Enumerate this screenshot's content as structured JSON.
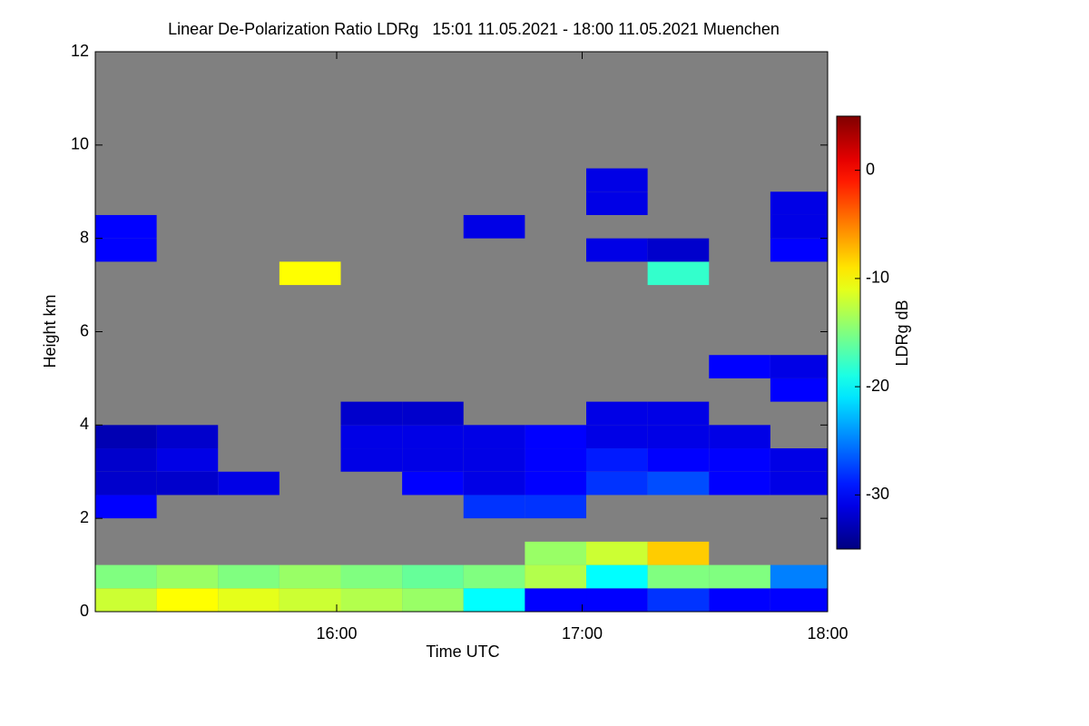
{
  "chart_data": {
    "type": "heatmap",
    "title": "Linear De-Polarization Ratio LDRg   15:01 11.05.2021 - 18:00 11.05.2021 Muenchen",
    "x_label": "Time UTC",
    "y_label": "Height km",
    "colorbar_label": "LDRg dB",
    "xlim": [
      901,
      1080
    ],
    "xticks": [
      {
        "value": 960,
        "label": "16:00"
      },
      {
        "value": 1020,
        "label": "17:00"
      },
      {
        "value": 1080,
        "label": "18:00"
      }
    ],
    "ylim": [
      0,
      12
    ],
    "yticks": [
      0,
      2,
      4,
      6,
      8,
      10,
      12
    ],
    "xbins": [
      901,
      916,
      931,
      946,
      961,
      976,
      991,
      1006,
      1021,
      1036,
      1051,
      1066,
      1080
    ],
    "ybins": [
      0,
      0.5,
      1,
      1.5,
      2,
      2.5,
      3,
      3.5,
      4,
      4.5,
      5,
      5.5,
      6,
      6.5,
      7,
      7.5,
      8,
      8.5,
      9,
      9.5,
      10,
      10.5,
      11,
      11.5,
      12
    ],
    "missing_color": "#808080",
    "colormap": "jet",
    "zlim": [
      -35,
      5
    ],
    "zticks": [
      -30,
      -20,
      -10,
      0
    ],
    "z": [
      [
        -12,
        -10,
        -11,
        -12,
        -13,
        -14,
        -20,
        -30,
        -30,
        -28,
        -30,
        -30
      ],
      [
        -15,
        -14,
        -15,
        -14,
        -15,
        -16,
        -15,
        -13,
        -20,
        -15,
        -15,
        -25
      ],
      [
        null,
        null,
        null,
        null,
        null,
        null,
        null,
        -14,
        -12,
        -8,
        null,
        null
      ],
      [
        null,
        null,
        null,
        null,
        null,
        null,
        null,
        null,
        null,
        null,
        null,
        null
      ],
      [
        -30,
        null,
        null,
        null,
        null,
        null,
        -28,
        -28,
        null,
        null,
        null,
        null
      ],
      [
        -32,
        -32,
        -31,
        null,
        null,
        -30,
        -31,
        -30,
        -28,
        -27,
        -30,
        -31
      ],
      [
        -32,
        -31,
        null,
        null,
        -31,
        -31,
        -31,
        -30,
        -29,
        -30,
        -30,
        -31
      ],
      [
        -33,
        -32,
        null,
        null,
        -31,
        -31,
        -31,
        -30,
        -31,
        -31,
        -31,
        null
      ],
      [
        null,
        null,
        null,
        null,
        -32,
        -32,
        null,
        null,
        -31,
        -31,
        null,
        null
      ],
      [
        null,
        null,
        null,
        null,
        null,
        null,
        null,
        null,
        null,
        null,
        null,
        -30
      ],
      [
        null,
        null,
        null,
        null,
        null,
        null,
        null,
        null,
        null,
        null,
        -30,
        -31
      ],
      [
        null,
        null,
        null,
        null,
        null,
        null,
        null,
        null,
        null,
        null,
        null,
        null
      ],
      [
        null,
        null,
        null,
        null,
        null,
        null,
        null,
        null,
        null,
        null,
        null,
        null
      ],
      [
        null,
        null,
        null,
        null,
        null,
        null,
        null,
        null,
        null,
        null,
        null,
        null
      ],
      [
        null,
        null,
        null,
        -10,
        null,
        null,
        null,
        null,
        null,
        -18,
        null,
        null
      ],
      [
        -30,
        null,
        null,
        null,
        null,
        null,
        null,
        null,
        -31,
        -32,
        null,
        -30
      ],
      [
        -30,
        null,
        null,
        null,
        null,
        null,
        -31,
        null,
        null,
        null,
        null,
        -31
      ],
      [
        null,
        null,
        null,
        null,
        null,
        null,
        null,
        null,
        -31,
        null,
        null,
        -31
      ],
      [
        null,
        null,
        null,
        null,
        null,
        null,
        null,
        null,
        -31,
        null,
        null,
        null
      ],
      [
        null,
        null,
        null,
        null,
        null,
        null,
        null,
        null,
        null,
        null,
        null,
        null
      ],
      [
        null,
        null,
        null,
        null,
        null,
        null,
        null,
        null,
        null,
        null,
        null,
        null
      ],
      [
        null,
        null,
        null,
        null,
        null,
        null,
        null,
        null,
        null,
        null,
        null,
        null
      ],
      [
        null,
        null,
        null,
        null,
        null,
        null,
        null,
        null,
        null,
        null,
        null,
        null
      ],
      [
        null,
        null,
        null,
        null,
        null,
        null,
        null,
        null,
        null,
        null,
        null,
        null
      ]
    ]
  }
}
